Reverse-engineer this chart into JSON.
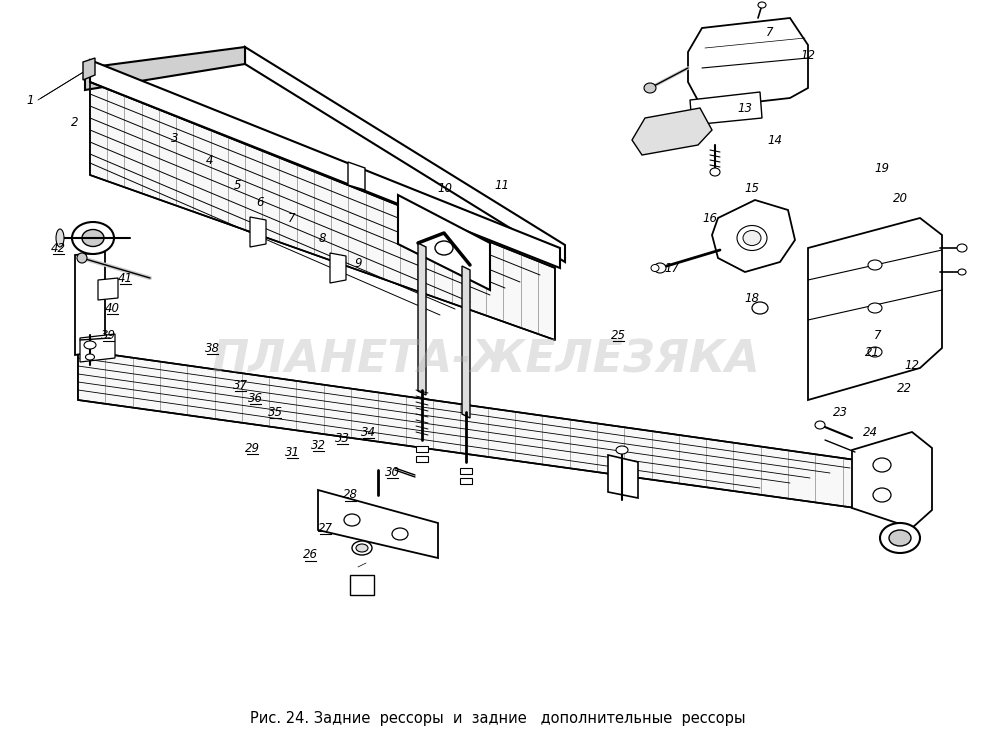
{
  "title": "Рис. 24. Задние  рессоры  и  задние   дополнительные  рессоры",
  "title_fontsize": 10.5,
  "bg_color": "#ffffff",
  "fig_width": 9.96,
  "fig_height": 7.42,
  "dpi": 100,
  "watermark": "ПЛАНЕТА-ЖЕЛЕЗЯКА",
  "watermark_color": "#b0b0b0",
  "watermark_alpha": 0.35,
  "watermark_fontsize": 32,
  "labels": [
    [
      30,
      100,
      "1",
      false
    ],
    [
      75,
      122,
      "2",
      false
    ],
    [
      175,
      138,
      "3",
      false
    ],
    [
      210,
      160,
      "4",
      false
    ],
    [
      238,
      185,
      "5",
      false
    ],
    [
      260,
      202,
      "6",
      false
    ],
    [
      292,
      218,
      "7",
      false
    ],
    [
      322,
      238,
      "8",
      false
    ],
    [
      358,
      263,
      "9",
      false
    ],
    [
      445,
      188,
      "10",
      false
    ],
    [
      502,
      185,
      "11",
      false
    ],
    [
      770,
      32,
      "7",
      false
    ],
    [
      808,
      55,
      "12",
      false
    ],
    [
      745,
      108,
      "13",
      false
    ],
    [
      775,
      140,
      "14",
      false
    ],
    [
      752,
      188,
      "15",
      false
    ],
    [
      710,
      218,
      "16",
      false
    ],
    [
      672,
      268,
      "17",
      false
    ],
    [
      752,
      298,
      "18",
      false
    ],
    [
      882,
      168,
      "19",
      false
    ],
    [
      900,
      198,
      "20",
      false
    ],
    [
      878,
      335,
      "7",
      false
    ],
    [
      912,
      365,
      "12",
      false
    ],
    [
      840,
      412,
      "23",
      false
    ],
    [
      870,
      432,
      "24",
      false
    ],
    [
      872,
      352,
      "21",
      false
    ],
    [
      904,
      388,
      "22",
      false
    ],
    [
      252,
      448,
      "29",
      true
    ],
    [
      292,
      452,
      "31",
      true
    ],
    [
      318,
      445,
      "32",
      true
    ],
    [
      342,
      438,
      "33",
      true
    ],
    [
      368,
      432,
      "34",
      true
    ],
    [
      275,
      412,
      "35",
      true
    ],
    [
      255,
      398,
      "36",
      true
    ],
    [
      240,
      385,
      "37",
      true
    ],
    [
      212,
      348,
      "38",
      true
    ],
    [
      108,
      335,
      "39",
      true
    ],
    [
      112,
      308,
      "40",
      true
    ],
    [
      125,
      278,
      "41",
      true
    ],
    [
      58,
      248,
      "42",
      true
    ],
    [
      392,
      472,
      "30",
      true
    ],
    [
      350,
      495,
      "28",
      true
    ],
    [
      325,
      528,
      "27",
      true
    ],
    [
      310,
      555,
      "26",
      true
    ],
    [
      618,
      335,
      "25",
      true
    ]
  ]
}
